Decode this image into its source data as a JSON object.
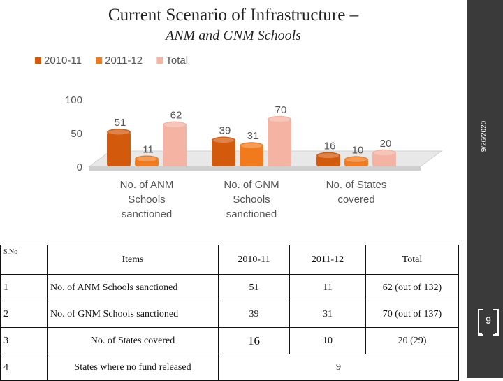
{
  "slide": {
    "title": "Current Scenario of Infrastructure –",
    "subtitle": "ANM and GNM Schools",
    "date": "9/26/2020",
    "page_number": "9"
  },
  "chart_data": {
    "type": "bar",
    "categories": [
      "No. of ANM Schools sanctioned",
      "No. of GNM Schools sanctioned",
      "No. of States covered"
    ],
    "series": [
      {
        "name": "2010-11",
        "values": [
          51,
          39,
          16
        ],
        "color": "#d35a0c"
      },
      {
        "name": "2011-12",
        "values": [
          11,
          31,
          10
        ],
        "color": "#f07a1c"
      },
      {
        "name": "Total",
        "values": [
          62,
          70,
          20
        ],
        "color": "#f4b3a3"
      }
    ],
    "ylim": [
      0,
      100
    ],
    "yticks": [
      0,
      50,
      100
    ],
    "legend": "top-left"
  },
  "table": {
    "headers": [
      "S.No",
      "Items",
      "2010-11",
      "2011-12",
      "Total"
    ],
    "rows": [
      [
        "1",
        "No. of ANM Schools sanctioned",
        "51",
        "11",
        "62 (out of 132)"
      ],
      [
        "2",
        "No. of GNM Schools sanctioned",
        "39",
        "31",
        "70 (out of 137)"
      ],
      [
        "3",
        "No. of States covered",
        "16",
        "10",
        "20 (29)"
      ],
      [
        "4",
        "States where no fund released",
        "",
        "9",
        ""
      ]
    ]
  }
}
